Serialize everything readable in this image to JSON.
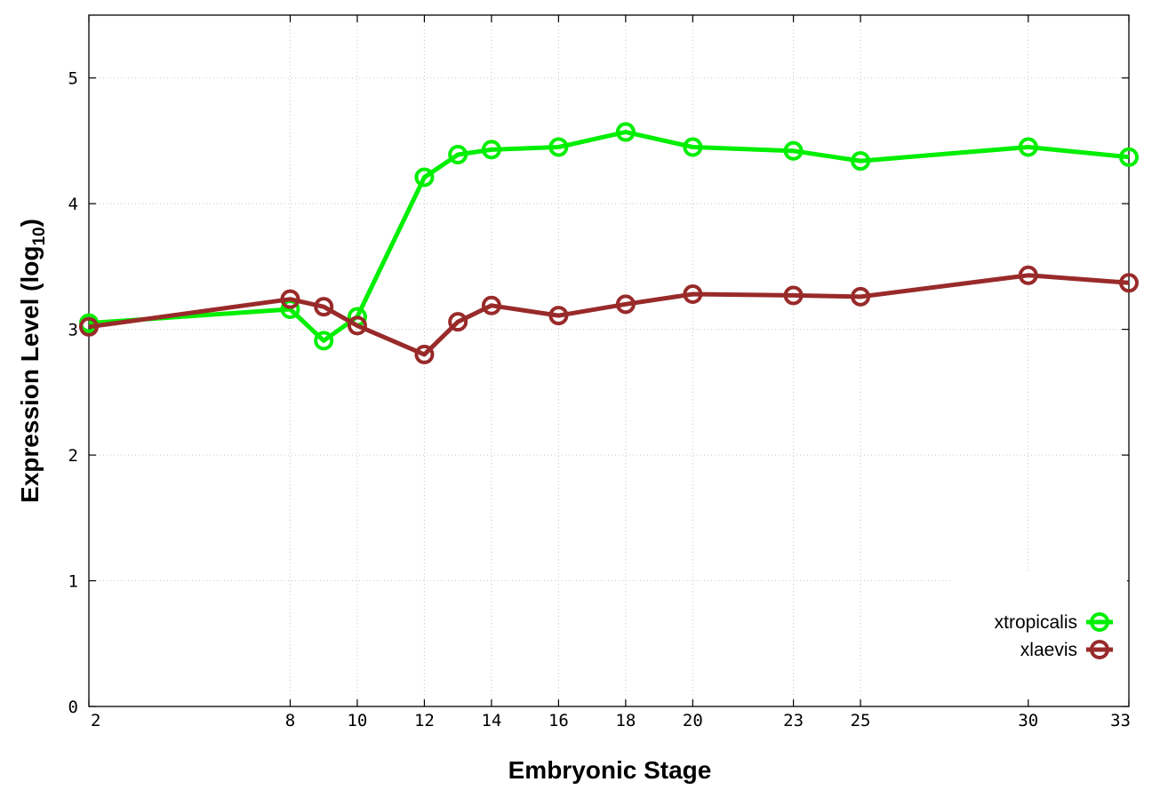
{
  "chart_data": {
    "type": "line",
    "xlabel": "Embryonic Stage",
    "ylabel": {
      "main": "Expression Level (log",
      "sub": "10",
      "close": ")"
    },
    "xlim": [
      2,
      33
    ],
    "ylim": [
      0,
      5.5
    ],
    "xticks": [
      2,
      8,
      10,
      12,
      14,
      16,
      18,
      20,
      23,
      25,
      30,
      33
    ],
    "xticks_offset": [
      2,
      8,
      10,
      12,
      14,
      16,
      18,
      20,
      23,
      25,
      30,
      33
    ],
    "yticks": [
      0,
      1,
      2,
      3,
      4,
      5
    ],
    "grid": true,
    "legend_position": "bottom-right",
    "series": [
      {
        "name": "xtropicalis",
        "color": "#00ee00",
        "x": [
          2,
          8,
          9,
          10,
          12,
          13,
          14,
          16,
          18,
          20,
          23,
          25,
          30,
          33
        ],
        "y": [
          3.05,
          3.16,
          2.91,
          3.1,
          4.21,
          4.39,
          4.43,
          4.45,
          4.57,
          4.45,
          4.42,
          4.34,
          4.45,
          4.37
        ]
      },
      {
        "name": "xlaevis",
        "color": "#992a2a",
        "x": [
          2,
          8,
          9,
          10,
          12,
          13,
          14,
          16,
          18,
          20,
          23,
          25,
          30,
          33
        ],
        "y": [
          3.02,
          3.24,
          3.18,
          3.03,
          2.8,
          3.06,
          3.19,
          3.11,
          3.2,
          3.28,
          3.27,
          3.26,
          3.43,
          3.37
        ]
      }
    ]
  }
}
